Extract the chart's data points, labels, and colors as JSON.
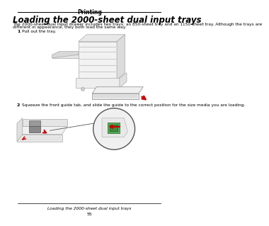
{
  "page_title": "Printing",
  "section_title": "Loading the 2000-sheet dual input trays",
  "body_line1": "The 2000-sheet dual input drawer includes two trays: an 850-sheet tray and an 1150-sheet tray. Although the trays are",
  "body_line2": "different in appearance, they both load the same way.",
  "step1_num": "1",
  "step1_text": "Pull out the tray.",
  "step2_num": "2",
  "step2_text": "Squeeze the front guide tab, and slide the guide to the correct position for the size media you are loading.",
  "footer_text": "Loading the 2000-sheet dual input trays",
  "footer_page": "55",
  "bg_color": "#ffffff",
  "text_color": "#000000",
  "line_color": "#000000",
  "printer_body_color": "#f2f2f2",
  "printer_edge_color": "#aaaaaa",
  "tray_color": "#ebebeb",
  "red_arrow_color": "#cc0000",
  "green_color": "#55aa55",
  "circle_bg": "#f0f0f0"
}
